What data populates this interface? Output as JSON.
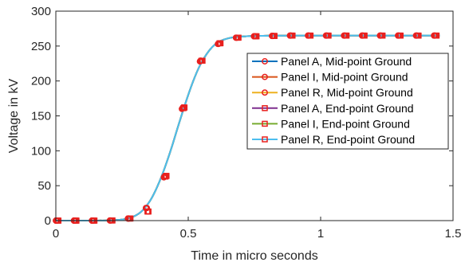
{
  "chart_data": {
    "type": "line",
    "xlabel": "Time in micro seconds",
    "ylabel": "Voltage in kV",
    "xlim": [
      0,
      1.5
    ],
    "ylim": [
      0,
      300
    ],
    "xticks": [
      0,
      0.5,
      1,
      1.5
    ],
    "xtick_labels": [
      "0",
      "0.5",
      "1",
      "1.5"
    ],
    "yticks": [
      0,
      50,
      100,
      150,
      200,
      250,
      300
    ],
    "ytick_labels": [
      "0",
      "50",
      "100",
      "150",
      "200",
      "250",
      "300"
    ],
    "grid": false,
    "legend_position": "right",
    "curve_x": [
      0,
      0.05,
      0.1,
      0.15,
      0.2,
      0.25,
      0.28,
      0.3,
      0.32,
      0.34,
      0.36,
      0.38,
      0.4,
      0.42,
      0.44,
      0.46,
      0.48,
      0.5,
      0.52,
      0.54,
      0.56,
      0.58,
      0.6,
      0.62,
      0.65,
      0.68,
      0.72,
      0.76,
      0.8,
      0.9,
      1.0,
      1.1,
      1.2,
      1.3,
      1.45
    ],
    "curve_y": [
      0,
      0,
      0,
      0,
      0.3,
      1.5,
      4,
      7,
      12,
      20,
      31,
      46,
      64,
      85,
      108,
      133,
      157,
      180,
      201,
      219,
      233,
      244,
      252,
      257,
      261,
      263,
      264,
      264.5,
      264.8,
      265,
      265,
      265,
      265,
      265,
      265
    ],
    "series": [
      {
        "name": "Panel A, Mid-point Ground",
        "color": "#0072BD",
        "marker": "circle",
        "marker_color": "#e8201e",
        "x": [
          0,
          0.068,
          0.136,
          0.204,
          0.272,
          0.34,
          0.408,
          0.476,
          0.544,
          0.612,
          0.68,
          0.748,
          0.816,
          0.884,
          0.952,
          1.02,
          1.088,
          1.156,
          1.224,
          1.292,
          1.36,
          1.428
        ],
        "y": [
          0,
          0,
          0,
          0.2,
          3,
          18,
          62,
          160,
          228,
          253,
          262,
          264,
          264.5,
          265,
          265,
          265,
          265,
          265,
          265,
          265,
          265,
          265
        ]
      },
      {
        "name": "Panel I, Mid-point Ground",
        "color": "#D95319",
        "marker": "circle",
        "marker_color": "#e8201e",
        "x": [
          0.002,
          0.07,
          0.138,
          0.206,
          0.274,
          0.342,
          0.41,
          0.478,
          0.546,
          0.614,
          0.682,
          0.75,
          0.818,
          0.886,
          0.954,
          1.022,
          1.09,
          1.158,
          1.226,
          1.294,
          1.362,
          1.43
        ],
        "y": [
          0,
          0,
          0,
          0.2,
          3,
          18,
          63,
          161,
          229,
          253,
          262,
          264,
          264.5,
          265,
          265,
          265,
          265,
          265,
          265,
          265,
          265,
          265
        ]
      },
      {
        "name": "Panel R, Mid-point Ground",
        "color": "#EDB120",
        "marker": "circle",
        "marker_color": "#e8201e",
        "x": [
          0.004,
          0.072,
          0.14,
          0.208,
          0.276,
          0.344,
          0.412,
          0.48,
          0.548,
          0.616,
          0.684,
          0.752,
          0.82,
          0.888,
          0.956,
          1.024,
          1.092,
          1.16,
          1.228,
          1.296,
          1.364,
          1.432
        ],
        "y": [
          0,
          0,
          0,
          0.2,
          3,
          18,
          64,
          162,
          229,
          254,
          262,
          264,
          264.5,
          265,
          265,
          265,
          265,
          265,
          265,
          265,
          265,
          265
        ]
      },
      {
        "name": "Panel A, End-point Ground",
        "color": "#7E2F8E",
        "marker": "square",
        "marker_color": "#e8201e",
        "x": [
          0.006,
          0.074,
          0.142,
          0.21,
          0.278,
          0.346,
          0.414,
          0.482,
          0.55,
          0.618,
          0.686,
          0.754,
          0.822,
          0.89,
          0.958,
          1.026,
          1.094,
          1.162,
          1.23,
          1.298,
          1.366,
          1.434
        ],
        "y": [
          0,
          0,
          0,
          0.2,
          3,
          13,
          63,
          161,
          229,
          254,
          262,
          264,
          264.5,
          265,
          265,
          265,
          265,
          265,
          265,
          265,
          265,
          265
        ]
      },
      {
        "name": "Panel I, End-point Ground",
        "color": "#77AC30",
        "marker": "square",
        "marker_color": "#e8201e",
        "x": [
          0.008,
          0.076,
          0.144,
          0.212,
          0.28,
          0.348,
          0.416,
          0.484,
          0.552,
          0.62,
          0.688,
          0.756,
          0.824,
          0.892,
          0.96,
          1.028,
          1.096,
          1.164,
          1.232,
          1.3,
          1.368,
          1.436
        ],
        "y": [
          0,
          0,
          0,
          0.2,
          3,
          13,
          64,
          162,
          229,
          254,
          262,
          264,
          264.5,
          265,
          265,
          265,
          265,
          265,
          265,
          265,
          265,
          265
        ]
      },
      {
        "name": "Panel R, End-point Ground",
        "color": "#4DBEEE",
        "marker": "square",
        "marker_color": "#e8201e",
        "x": [
          0.01,
          0.078,
          0.146,
          0.214,
          0.282,
          0.35,
          0.418,
          0.486,
          0.554,
          0.622,
          0.69,
          0.758,
          0.826,
          0.894,
          0.962,
          1.03,
          1.098,
          1.166,
          1.234,
          1.302,
          1.37,
          1.438
        ],
        "y": [
          0,
          0,
          0,
          0.2,
          3,
          13,
          64,
          162,
          229,
          254,
          262,
          264,
          264.5,
          265,
          265,
          265,
          265,
          265,
          265,
          265,
          265,
          265
        ]
      }
    ]
  }
}
